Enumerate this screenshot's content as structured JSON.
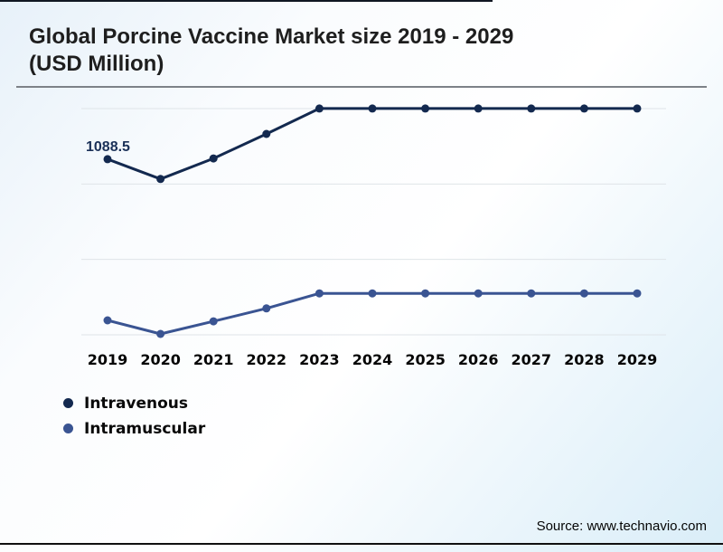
{
  "page": {
    "title": "Global Porcine Vaccine Market size 2019 - 2029 (USD Million)",
    "source": "Source: www.technavio.com"
  },
  "legend": {
    "items": [
      {
        "label": "Intravenous",
        "color": "#13294f"
      },
      {
        "label": "Intramuscular",
        "color": "#3a5492"
      }
    ]
  },
  "chart_data": {
    "type": "line",
    "title": "Global Porcine Vaccine Market size 2019 - 2029 (USD Million)",
    "categories": [
      "2019",
      "2020",
      "2021",
      "2022",
      "2023",
      "2024",
      "2025",
      "2026",
      "2027",
      "2028",
      "2029"
    ],
    "series": [
      {
        "name": "Intravenous",
        "color": "#13294f",
        "values": [
          1088.5,
          1049,
          1090,
          1139,
          1190,
          1190,
          1190,
          1190,
          1190,
          1190,
          1190
        ]
      },
      {
        "name": "Intramuscular",
        "color": "#3a5492",
        "values": [
          766,
          739,
          764,
          790,
          820,
          820,
          820,
          820,
          820,
          820,
          820
        ]
      }
    ],
    "annotations": [
      {
        "series": "Intravenous",
        "x": "2019",
        "value": 1088.5,
        "text": "1088.5",
        "color": "#1b3158"
      }
    ],
    "ylim": [
      719,
      1226
    ],
    "y_axis_visible": false,
    "grid": "horizontal",
    "grid_color": "#dfe4e8",
    "x_label_color": "#050505",
    "legend_position": "bottom-left"
  }
}
